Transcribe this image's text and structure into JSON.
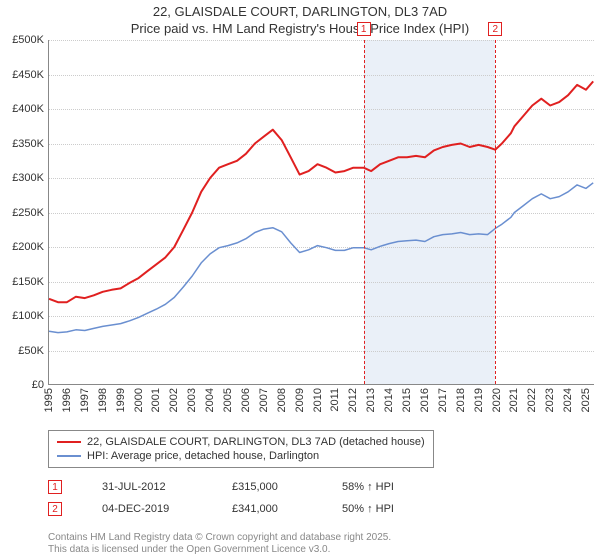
{
  "title_line1": "22, GLAISDALE COURT, DARLINGTON, DL3 7AD",
  "title_line2": "Price paid vs. HM Land Registry's House Price Index (HPI)",
  "chart": {
    "type": "line",
    "background_color": "#ffffff",
    "grid_color": "#cccccc",
    "axis_color": "#888888",
    "x_range": [
      1995,
      2025.5
    ],
    "y_range": [
      0,
      500000
    ],
    "y_tick_step": 50000,
    "y_tick_labels": [
      "£0",
      "£50K",
      "£100K",
      "£150K",
      "£200K",
      "£250K",
      "£300K",
      "£350K",
      "£400K",
      "£450K",
      "£500K"
    ],
    "x_ticks": [
      1995,
      1996,
      1997,
      1998,
      1999,
      2000,
      2001,
      2002,
      2003,
      2004,
      2005,
      2006,
      2007,
      2008,
      2009,
      2010,
      2011,
      2012,
      2013,
      2014,
      2015,
      2016,
      2017,
      2018,
      2019,
      2020,
      2021,
      2022,
      2023,
      2024,
      2025
    ],
    "shaded_region": {
      "x_start": 2012.58,
      "x_end": 2019.93,
      "color": "#eaf0f8"
    },
    "markers": [
      {
        "n": "1",
        "x": 2012.58
      },
      {
        "n": "2",
        "x": 2019.93
      }
    ],
    "series": [
      {
        "name": "22, GLAISDALE COURT, DARLINGTON, DL3 7AD (detached house)",
        "color": "#e02020",
        "line_width": 2,
        "points": [
          [
            1995,
            125000
          ],
          [
            1995.5,
            120000
          ],
          [
            1996,
            120000
          ],
          [
            1996.5,
            128000
          ],
          [
            1997,
            126000
          ],
          [
            1997.5,
            130000
          ],
          [
            1998,
            135000
          ],
          [
            1998.5,
            138000
          ],
          [
            1999,
            140000
          ],
          [
            1999.5,
            148000
          ],
          [
            2000,
            155000
          ],
          [
            2000.5,
            165000
          ],
          [
            2001,
            175000
          ],
          [
            2001.5,
            185000
          ],
          [
            2002,
            200000
          ],
          [
            2002.5,
            225000
          ],
          [
            2003,
            250000
          ],
          [
            2003.5,
            280000
          ],
          [
            2004,
            300000
          ],
          [
            2004.5,
            315000
          ],
          [
            2005,
            320000
          ],
          [
            2005.5,
            325000
          ],
          [
            2006,
            335000
          ],
          [
            2006.5,
            350000
          ],
          [
            2007,
            360000
          ],
          [
            2007.5,
            370000
          ],
          [
            2008,
            355000
          ],
          [
            2008.5,
            330000
          ],
          [
            2009,
            305000
          ],
          [
            2009.5,
            310000
          ],
          [
            2010,
            320000
          ],
          [
            2010.5,
            315000
          ],
          [
            2011,
            308000
          ],
          [
            2011.5,
            310000
          ],
          [
            2012,
            315000
          ],
          [
            2012.58,
            315000
          ],
          [
            2013,
            310000
          ],
          [
            2013.5,
            320000
          ],
          [
            2014,
            325000
          ],
          [
            2014.5,
            330000
          ],
          [
            2015,
            330000
          ],
          [
            2015.5,
            332000
          ],
          [
            2016,
            330000
          ],
          [
            2016.5,
            340000
          ],
          [
            2017,
            345000
          ],
          [
            2017.5,
            348000
          ],
          [
            2018,
            350000
          ],
          [
            2018.5,
            345000
          ],
          [
            2019,
            348000
          ],
          [
            2019.5,
            345000
          ],
          [
            2019.93,
            341000
          ],
          [
            2020.3,
            350000
          ],
          [
            2020.8,
            365000
          ],
          [
            2021,
            375000
          ],
          [
            2021.5,
            390000
          ],
          [
            2022,
            405000
          ],
          [
            2022.5,
            415000
          ],
          [
            2023,
            405000
          ],
          [
            2023.5,
            410000
          ],
          [
            2024,
            420000
          ],
          [
            2024.5,
            435000
          ],
          [
            2025,
            428000
          ],
          [
            2025.4,
            440000
          ]
        ]
      },
      {
        "name": "HPI: Average price, detached house, Darlington",
        "color": "#6a8fd0",
        "line_width": 1.5,
        "points": [
          [
            1995,
            78000
          ],
          [
            1995.5,
            76000
          ],
          [
            1996,
            77000
          ],
          [
            1996.5,
            80000
          ],
          [
            1997,
            79000
          ],
          [
            1997.5,
            82000
          ],
          [
            1998,
            85000
          ],
          [
            1998.5,
            87000
          ],
          [
            1999,
            89000
          ],
          [
            1999.5,
            93000
          ],
          [
            2000,
            98000
          ],
          [
            2000.5,
            104000
          ],
          [
            2001,
            110000
          ],
          [
            2001.5,
            117000
          ],
          [
            2002,
            127000
          ],
          [
            2002.5,
            142000
          ],
          [
            2003,
            158000
          ],
          [
            2003.5,
            177000
          ],
          [
            2004,
            190000
          ],
          [
            2004.5,
            199000
          ],
          [
            2005,
            202000
          ],
          [
            2005.5,
            206000
          ],
          [
            2006,
            212000
          ],
          [
            2006.5,
            221000
          ],
          [
            2007,
            226000
          ],
          [
            2007.5,
            228000
          ],
          [
            2008,
            222000
          ],
          [
            2008.5,
            206000
          ],
          [
            2009,
            192000
          ],
          [
            2009.5,
            196000
          ],
          [
            2010,
            202000
          ],
          [
            2010.5,
            199000
          ],
          [
            2011,
            195000
          ],
          [
            2011.5,
            195000
          ],
          [
            2012,
            199000
          ],
          [
            2012.58,
            199000
          ],
          [
            2013,
            196000
          ],
          [
            2013.5,
            201000
          ],
          [
            2014,
            205000
          ],
          [
            2014.5,
            208000
          ],
          [
            2015,
            209000
          ],
          [
            2015.5,
            210000
          ],
          [
            2016,
            208000
          ],
          [
            2016.5,
            215000
          ],
          [
            2017,
            218000
          ],
          [
            2017.5,
            219000
          ],
          [
            2018,
            221000
          ],
          [
            2018.5,
            218000
          ],
          [
            2019,
            219000
          ],
          [
            2019.5,
            218000
          ],
          [
            2019.93,
            227000
          ],
          [
            2020.3,
            233000
          ],
          [
            2020.8,
            243000
          ],
          [
            2021,
            250000
          ],
          [
            2021.5,
            260000
          ],
          [
            2022,
            270000
          ],
          [
            2022.5,
            277000
          ],
          [
            2023,
            270000
          ],
          [
            2023.5,
            273000
          ],
          [
            2024,
            280000
          ],
          [
            2024.5,
            290000
          ],
          [
            2025,
            285000
          ],
          [
            2025.4,
            293000
          ]
        ]
      }
    ]
  },
  "legend": {
    "items": [
      {
        "color": "#e02020",
        "label": "22, GLAISDALE COURT, DARLINGTON, DL3 7AD (detached house)"
      },
      {
        "color": "#6a8fd0",
        "label": "HPI: Average price, detached house, Darlington"
      }
    ]
  },
  "sales": [
    {
      "n": "1",
      "date": "31-JUL-2012",
      "price": "£315,000",
      "pct": "58% ↑ HPI"
    },
    {
      "n": "2",
      "date": "04-DEC-2019",
      "price": "£341,000",
      "pct": "50% ↑ HPI"
    }
  ],
  "footer_line1": "Contains HM Land Registry data © Crown copyright and database right 2025.",
  "footer_line2": "This data is licensed under the Open Government Licence v3.0."
}
